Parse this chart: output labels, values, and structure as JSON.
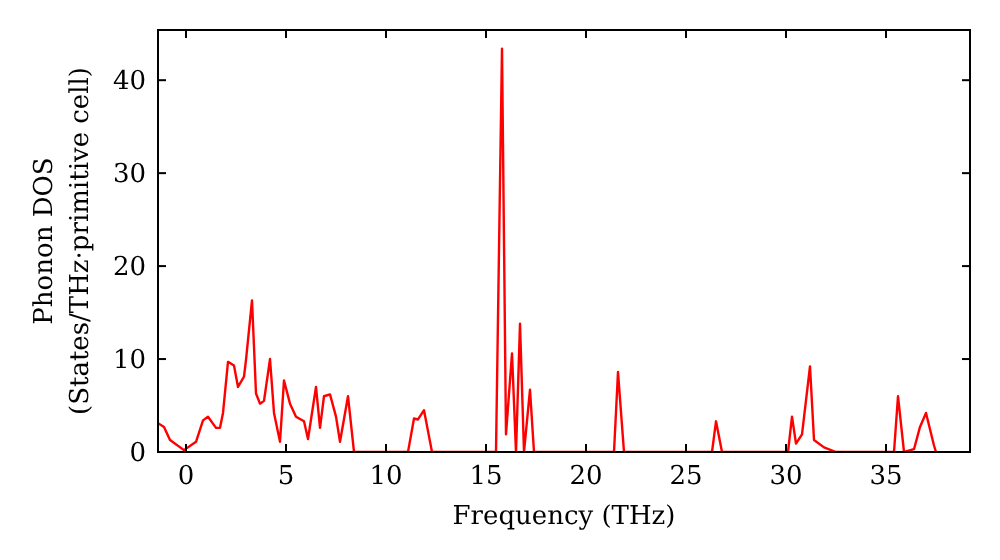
{
  "chart_data": {
    "type": "line",
    "xlabel": "Frequency (THz)",
    "ylabel": "Phonon DOS\n(States/THz·primitive cell)",
    "xlim": [
      -1.4,
      39.2
    ],
    "ylim": [
      0,
      45.4
    ],
    "xticks": [
      0,
      5,
      10,
      15,
      20,
      25,
      30,
      35
    ],
    "yticks": [
      0,
      10,
      20,
      30,
      40
    ],
    "grid": false,
    "series": [
      {
        "color": "#ff0000",
        "x": [
          -1.4,
          -1.1,
          -0.8,
          -0.1,
          0.5,
          0.85,
          1.1,
          1.5,
          1.7,
          1.85,
          2.1,
          2.4,
          2.6,
          2.9,
          3.0,
          3.3,
          3.5,
          3.7,
          3.9,
          4.2,
          4.4,
          4.7,
          4.9,
          5.2,
          5.5,
          5.9,
          6.1,
          6.3,
          6.5,
          6.7,
          6.9,
          7.2,
          7.5,
          7.7,
          8.1,
          8.4,
          11.1,
          11.4,
          11.6,
          11.9,
          12.3,
          15.5,
          15.8,
          16.0,
          16.3,
          16.5,
          16.7,
          16.9,
          17.2,
          17.4,
          21.4,
          21.6,
          21.9,
          26.3,
          26.5,
          26.8,
          30.1,
          30.3,
          30.5,
          30.8,
          31.2,
          31.4,
          31.9,
          32.5,
          35.4,
          35.6,
          35.9,
          36.4,
          36.7,
          37.0,
          37.4,
          37.5
        ],
        "values": [
          3.1,
          2.7,
          1.3,
          0.2,
          1.1,
          3.4,
          3.8,
          2.6,
          2.6,
          4.2,
          9.7,
          9.3,
          7.0,
          8.1,
          9.9,
          16.3,
          6.3,
          5.2,
          5.5,
          10.0,
          4.2,
          1.1,
          7.7,
          5.2,
          3.8,
          3.3,
          1.4,
          4.2,
          7.0,
          2.6,
          6.0,
          6.2,
          3.8,
          1.1,
          6.0,
          0,
          0,
          3.6,
          3.5,
          4.5,
          0,
          0,
          43.4,
          1.9,
          10.6,
          0,
          13.8,
          0,
          6.7,
          0,
          0,
          8.6,
          0,
          0,
          3.3,
          0,
          0,
          3.8,
          0.9,
          1.9,
          9.2,
          1.3,
          0.5,
          0,
          0,
          6.0,
          0,
          0.3,
          2.7,
          4.2,
          0.7,
          0
        ]
      }
    ]
  }
}
